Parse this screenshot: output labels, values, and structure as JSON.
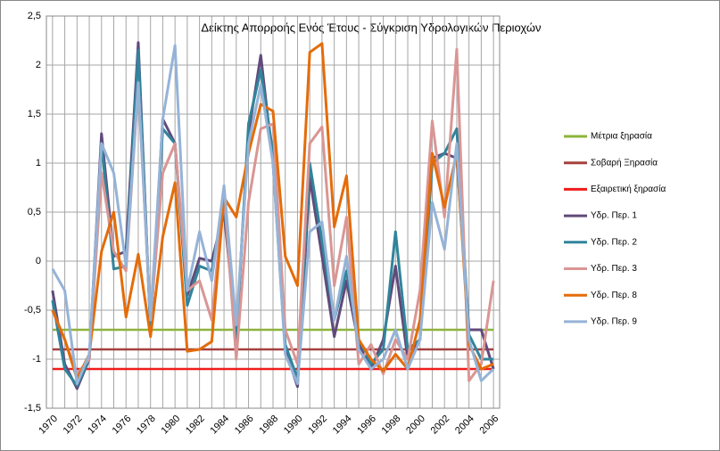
{
  "chart_data": {
    "type": "line",
    "title": "Δείκτης Απορροής Ενός Έτους - Σύγκριση Υδρολογικών  Περιοχών",
    "categories": [
      1970,
      null,
      1972,
      null,
      1974,
      null,
      1976,
      null,
      1978,
      null,
      1980,
      null,
      1982,
      null,
      1984,
      null,
      1986,
      null,
      1988,
      null,
      1990,
      null,
      1992,
      null,
      1994,
      null,
      1996,
      null,
      1998,
      null,
      2000,
      null,
      2002,
      null,
      2004,
      null,
      2006
    ],
    "ylim": [
      -1.5,
      2.5
    ],
    "yticks": [
      {
        "value": -1.5,
        "label": "-1,5"
      },
      -1,
      {
        "value": -0.5,
        "label": "-0,5"
      },
      0,
      {
        "value": 0.5,
        "label": "0,5"
      },
      1,
      {
        "value": 1.5,
        "label": "1,5"
      },
      2,
      {
        "value": 2.5,
        "label": "2,5"
      }
    ],
    "grid": true,
    "legend": "right",
    "series": [
      {
        "name": "Μέτρια ξηρασία",
        "color": "#8db33a",
        "values": [
          -0.7,
          -0.7,
          -0.7,
          -0.7,
          -0.7,
          -0.7,
          -0.7,
          -0.7,
          -0.7,
          -0.7,
          -0.7,
          -0.7,
          -0.7,
          -0.7,
          -0.7,
          -0.7,
          -0.7,
          -0.7,
          -0.7,
          -0.7,
          -0.7,
          -0.7,
          -0.7,
          -0.7,
          -0.7,
          -0.7,
          -0.7,
          -0.7,
          -0.7,
          -0.7,
          -0.7,
          -0.7,
          -0.7,
          -0.7,
          -0.7,
          -0.7,
          -0.7
        ]
      },
      {
        "name": "Σοβαρή Ξηρασία",
        "color": "#a5413f",
        "values": [
          -0.9,
          -0.9,
          -0.9,
          -0.9,
          -0.9,
          -0.9,
          -0.9,
          -0.9,
          -0.9,
          -0.9,
          -0.9,
          -0.9,
          -0.9,
          -0.9,
          -0.9,
          -0.9,
          -0.9,
          -0.9,
          -0.9,
          -0.9,
          -0.9,
          -0.9,
          -0.9,
          -0.9,
          -0.9,
          -0.9,
          -0.9,
          -0.9,
          -0.9,
          -0.9,
          -0.9,
          -0.9,
          -0.9,
          -0.9,
          -0.9,
          -0.9,
          -0.9
        ]
      },
      {
        "name": "Εξαιρετική ξηρασία",
        "color": "#ee1c1c",
        "values": [
          -1.1,
          -1.1,
          -1.1,
          -1.1,
          -1.1,
          -1.1,
          -1.1,
          -1.1,
          -1.1,
          -1.1,
          -1.1,
          -1.1,
          -1.1,
          -1.1,
          -1.1,
          -1.1,
          -1.1,
          -1.1,
          -1.1,
          -1.1,
          -1.1,
          -1.1,
          -1.1,
          -1.1,
          -1.1,
          -1.1,
          -1.1,
          -1.1,
          -1.1,
          -1.1,
          -1.1,
          -1.1,
          -1.1,
          -1.1,
          -1.1,
          -1.1,
          -1.1
        ]
      },
      {
        "name": "Υδρ. Περ. 1",
        "color": "#604a7b",
        "values": [
          -0.3,
          -1.05,
          -1.3,
          -1.0,
          1.3,
          0.05,
          0.1,
          2.23,
          -0.7,
          1.45,
          1.2,
          -0.35,
          0.03,
          0.0,
          0.5,
          -0.75,
          1.3,
          2.1,
          1.0,
          -0.9,
          -1.28,
          0.85,
          0.05,
          -0.77,
          -0.2,
          -0.85,
          -1.1,
          -0.8,
          -0.05,
          -1.0,
          -0.8,
          1.05,
          1.1,
          1.05,
          -0.7,
          -0.7,
          -1.1
        ]
      },
      {
        "name": "Υδρ. Περ. 2",
        "color": "#31849b",
        "values": [
          -0.4,
          -1.1,
          -1.27,
          -1.0,
          1.2,
          -0.08,
          -0.05,
          2.15,
          -0.7,
          1.35,
          1.2,
          -0.45,
          -0.05,
          -0.1,
          0.6,
          -0.8,
          1.4,
          1.95,
          1.1,
          -0.85,
          -1.2,
          1.0,
          0.2,
          -0.6,
          -0.1,
          -0.8,
          -1.05,
          -0.9,
          0.3,
          -0.9,
          -0.8,
          1.0,
          1.1,
          1.35,
          -0.75,
          -1.0,
          -1.0
        ]
      },
      {
        "name": "Υδρ. Περ. 3",
        "color": "#d99694",
        "values": [
          -0.5,
          -0.8,
          -1.15,
          -1.0,
          0.9,
          0.1,
          -0.1,
          1.8,
          -0.6,
          0.9,
          1.2,
          -0.3,
          -0.2,
          -0.6,
          0.7,
          -1.0,
          0.6,
          1.35,
          1.4,
          -0.7,
          -1.05,
          1.2,
          1.37,
          -0.25,
          0.45,
          -1.05,
          -0.85,
          -1.15,
          -0.8,
          -1.0,
          -0.3,
          1.43,
          0.45,
          2.16,
          -1.22,
          -1.05,
          -0.2
        ]
      },
      {
        "name": "Υδρ. Περ. 8",
        "color": "#e46c0a",
        "values": [
          -0.5,
          -0.8,
          -1.2,
          -0.95,
          0.1,
          0.5,
          -0.57,
          0.07,
          -0.77,
          0.25,
          0.8,
          -0.92,
          -0.9,
          -0.82,
          0.65,
          0.45,
          1.1,
          1.6,
          1.53,
          0.05,
          -0.25,
          2.13,
          2.22,
          0.35,
          0.87,
          -0.8,
          -1.0,
          -1.12,
          -0.95,
          -1.1,
          -0.6,
          1.1,
          0.55,
          1.1,
          -0.85,
          -1.1,
          -1.05
        ]
      },
      {
        "name": "Υδρ. Περ. 9",
        "color": "#95b3d7",
        "values": [
          -0.08,
          -0.3,
          -1.25,
          -0.95,
          1.2,
          0.9,
          -0.05,
          1.82,
          -0.6,
          1.45,
          2.2,
          -0.3,
          0.3,
          -0.2,
          0.77,
          -0.65,
          1.2,
          1.8,
          1.0,
          -0.95,
          -1.25,
          0.3,
          0.4,
          -0.6,
          0.05,
          -0.9,
          -1.1,
          -1.0,
          -0.7,
          -1.1,
          -0.8,
          0.6,
          0.12,
          1.2,
          -0.8,
          -1.22,
          -1.1
        ]
      }
    ]
  }
}
